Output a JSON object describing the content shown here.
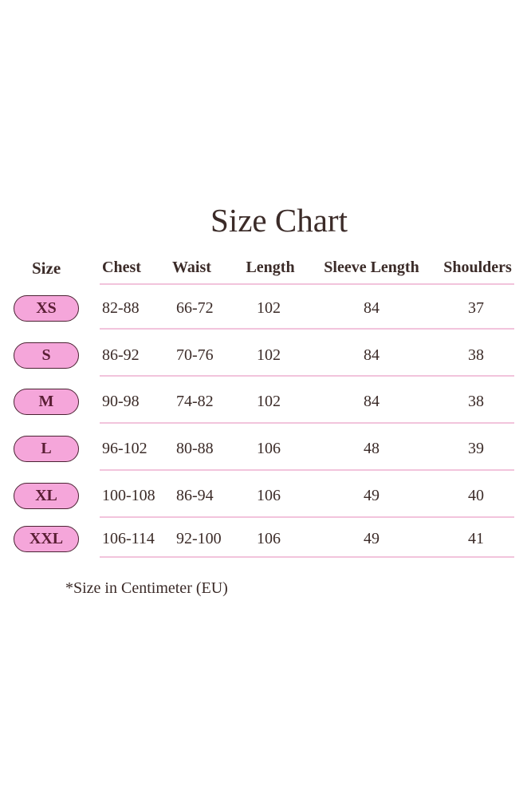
{
  "title": "Size Chart",
  "headers": [
    "Size",
    "Chest",
    "Waist",
    "Length",
    "Sleeve Length",
    "Shoulders"
  ],
  "rows": [
    {
      "size": "XS",
      "chest": "82-88",
      "waist": "66-72",
      "length": "102",
      "sleeve": "84",
      "shoulders": "37"
    },
    {
      "size": "S",
      "chest": "86-92",
      "waist": "70-76",
      "length": "102",
      "sleeve": "84",
      "shoulders": "38"
    },
    {
      "size": "M",
      "chest": "90-98",
      "waist": "74-82",
      "length": "102",
      "sleeve": "84",
      "shoulders": "38"
    },
    {
      "size": "L",
      "chest": "96-102",
      "waist": "80-88",
      "length": "106",
      "sleeve": "48",
      "shoulders": "39"
    },
    {
      "size": "XL",
      "chest": "100-108",
      "waist": "86-94",
      "length": "106",
      "sleeve": "49",
      "shoulders": "40"
    },
    {
      "size": "XXL",
      "chest": "106-114",
      "waist": "92-100",
      "length": "106",
      "sleeve": "49",
      "shoulders": "41"
    }
  ],
  "note": "*Size in Centimeter (EU)",
  "colors": {
    "pill_fill": "#f5a6da",
    "pill_border": "#4a2232",
    "divider": "#f2c4dc",
    "text": "#3b2b28"
  }
}
